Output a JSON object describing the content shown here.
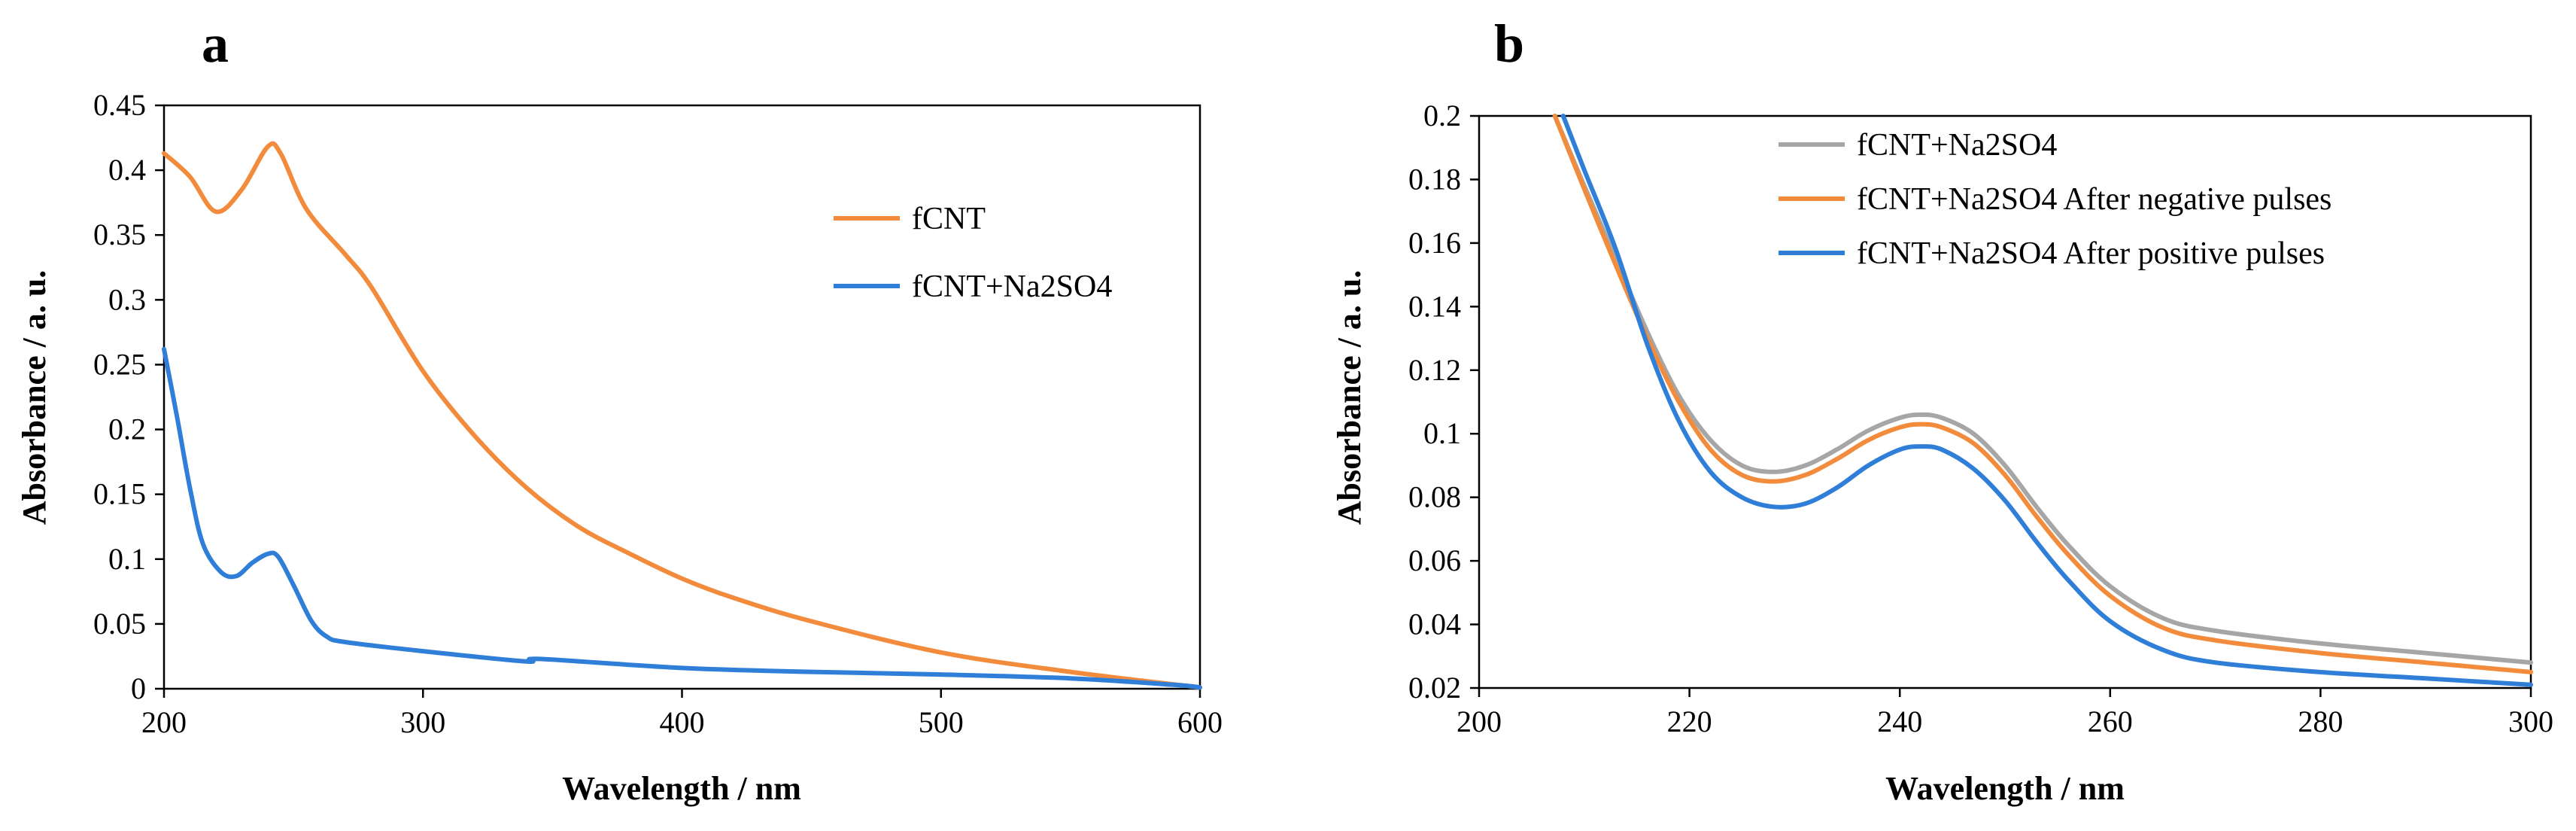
{
  "chart_data": [
    {
      "panel_label": "a",
      "type": "line",
      "xlabel": "Wavelength / nm",
      "ylabel": "Absorbance / a. u.",
      "xlim": [
        200,
        600
      ],
      "ylim": [
        0,
        0.45
      ],
      "xticks": [
        200,
        300,
        400,
        500,
        600
      ],
      "yticks": [
        0,
        0.05,
        0.1,
        0.15,
        0.2,
        0.25,
        0.3,
        0.35,
        0.4,
        0.45
      ],
      "xtick_labels": [
        "200",
        "300",
        "400",
        "500",
        "600"
      ],
      "ytick_labels": [
        "0",
        "0.05",
        "0.1",
        "0.15",
        "0.2",
        "0.25",
        "0.3",
        "0.35",
        "0.4",
        "0.45"
      ],
      "legend_position": "top-right",
      "series": [
        {
          "name": "fCNT",
          "color": "#F28C3C",
          "x": [
            200,
            210,
            220,
            230,
            240,
            245,
            255,
            270,
            280,
            300,
            320,
            340,
            360,
            380,
            400,
            420,
            450,
            500,
            550,
            600
          ],
          "y": [
            0.413,
            0.395,
            0.368,
            0.385,
            0.418,
            0.413,
            0.37,
            0.335,
            0.31,
            0.245,
            0.195,
            0.155,
            0.125,
            0.104,
            0.085,
            0.07,
            0.052,
            0.028,
            0.013,
            0.001
          ]
        },
        {
          "name": "fCNT+Na2SO4",
          "color": "#2F7FD8",
          "x": [
            200,
            205,
            210,
            215,
            222,
            228,
            234,
            240,
            244,
            250,
            257,
            263,
            270,
            300,
            340,
            345,
            400,
            450,
            500,
            550,
            590,
            600
          ],
          "y": [
            0.262,
            0.21,
            0.155,
            0.112,
            0.09,
            0.087,
            0.097,
            0.104,
            0.102,
            0.08,
            0.052,
            0.04,
            0.036,
            0.029,
            0.021,
            0.023,
            0.016,
            0.013,
            0.011,
            0.008,
            0.003,
            0.001
          ]
        }
      ]
    },
    {
      "panel_label": "b",
      "type": "line",
      "xlabel": "Wavelength / nm",
      "ylabel": "Absorbance / a. u.",
      "xlim": [
        200,
        300
      ],
      "ylim": [
        0.02,
        0.2
      ],
      "xticks": [
        200,
        220,
        240,
        260,
        280,
        300
      ],
      "yticks": [
        0.02,
        0.04,
        0.06,
        0.08,
        0.1,
        0.12,
        0.14,
        0.16,
        0.18,
        0.2
      ],
      "xtick_labels": [
        "200",
        "220",
        "240",
        "260",
        "280",
        "300"
      ],
      "ytick_labels": [
        "0.02",
        "0.04",
        "0.06",
        "0.08",
        "0.1",
        "0.12",
        "0.14",
        "0.16",
        "0.18",
        "0.2"
      ],
      "legend_position": "top-center",
      "series": [
        {
          "name": "fCNT+Na2SO4",
          "color": "#A6A6A6",
          "x": [
            207.2,
            210,
            213,
            216,
            219,
            222,
            225,
            228,
            231,
            234,
            237,
            240,
            242,
            244,
            247,
            250,
            253,
            256,
            260,
            265,
            270,
            280,
            290,
            300
          ],
          "y": [
            0.2,
            0.178,
            0.155,
            0.132,
            0.112,
            0.098,
            0.09,
            0.088,
            0.09,
            0.095,
            0.101,
            0.105,
            0.106,
            0.105,
            0.1,
            0.09,
            0.077,
            0.065,
            0.052,
            0.042,
            0.038,
            0.034,
            0.031,
            0.028
          ]
        },
        {
          "name": "fCNT+Na2SO4 After negative pulses",
          "color": "#F28C3C",
          "x": [
            207.2,
            210,
            213,
            216,
            219,
            222,
            225,
            228,
            231,
            234,
            237,
            240,
            242,
            244,
            247,
            250,
            253,
            256,
            260,
            265,
            270,
            280,
            290,
            300
          ],
          "y": [
            0.2,
            0.177,
            0.153,
            0.13,
            0.11,
            0.095,
            0.087,
            0.085,
            0.087,
            0.092,
            0.098,
            0.102,
            0.103,
            0.102,
            0.097,
            0.087,
            0.074,
            0.062,
            0.049,
            0.039,
            0.035,
            0.031,
            0.028,
            0.025
          ]
        },
        {
          "name": "fCNT+Na2SO4 After positive pulses",
          "color": "#2F7FD8",
          "x": [
            208,
            210,
            213,
            216,
            219,
            222,
            225,
            228,
            231,
            234,
            237,
            240,
            242,
            244,
            247,
            250,
            253,
            256,
            260,
            265,
            270,
            280,
            290,
            300
          ],
          "y": [
            0.2,
            0.183,
            0.158,
            0.128,
            0.104,
            0.088,
            0.08,
            0.077,
            0.078,
            0.083,
            0.09,
            0.095,
            0.096,
            0.095,
            0.089,
            0.079,
            0.066,
            0.054,
            0.041,
            0.032,
            0.028,
            0.025,
            0.023,
            0.021
          ]
        }
      ]
    }
  ]
}
